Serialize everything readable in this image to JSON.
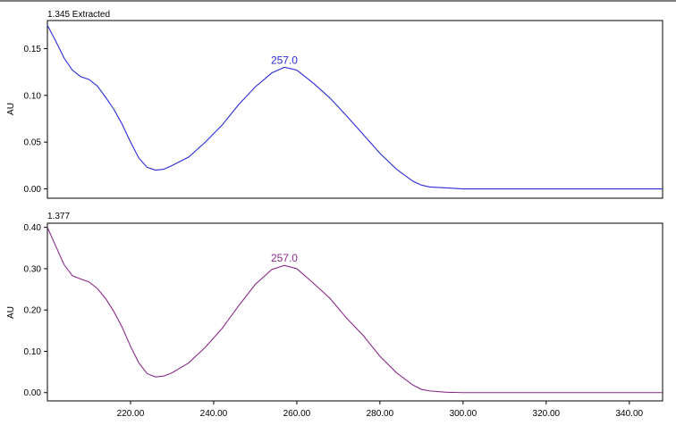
{
  "chart_data": [
    {
      "type": "line",
      "title": "1.345 Extracted",
      "xlabel": "",
      "ylabel": "AU",
      "xlim": [
        200,
        348
      ],
      "ylim": [
        -0.01,
        0.18
      ],
      "yticks": [
        0.0,
        0.05,
        0.1,
        0.15
      ],
      "ytick_labels": [
        "0.00",
        "0.05",
        "0.10",
        "0.15"
      ],
      "xticks": [],
      "xtick_labels": [],
      "grid": false,
      "series": [
        {
          "color": "#2b2bdc",
          "x": [
            200,
            202,
            204,
            206,
            208,
            210,
            212,
            214,
            216,
            218,
            220,
            222,
            224,
            226,
            228,
            230,
            234,
            238,
            242,
            246,
            250,
            254,
            257,
            260,
            264,
            268,
            272,
            276,
            280,
            284,
            288,
            290,
            292,
            296,
            300,
            310,
            320,
            330,
            340,
            348
          ],
          "values": [
            0.175,
            0.158,
            0.14,
            0.127,
            0.12,
            0.117,
            0.11,
            0.098,
            0.085,
            0.069,
            0.05,
            0.033,
            0.023,
            0.02,
            0.021,
            0.025,
            0.034,
            0.05,
            0.068,
            0.09,
            0.109,
            0.124,
            0.13,
            0.127,
            0.113,
            0.097,
            0.078,
            0.058,
            0.038,
            0.021,
            0.008,
            0.004,
            0.002,
            0.001,
            0.0,
            0.0,
            0.0,
            0.0,
            0.0,
            0.0
          ]
        }
      ],
      "annotations": [
        {
          "text": "257.0",
          "x": 257,
          "y": 0.13,
          "color": "#2b2bdc"
        }
      ]
    },
    {
      "type": "line",
      "title": "1.377",
      "xlabel": "",
      "ylabel": "AU",
      "xlim": [
        200,
        348
      ],
      "ylim": [
        -0.02,
        0.41
      ],
      "yticks": [
        0.0,
        0.1,
        0.2,
        0.3,
        0.4
      ],
      "ytick_labels": [
        "0.00",
        "0.10",
        "0.20",
        "0.30",
        "0.40"
      ],
      "xticks": [
        220,
        240,
        260,
        280,
        300,
        320,
        340
      ],
      "xtick_labels": [
        "220.00",
        "240.00",
        "260.00",
        "280.00",
        "300.00",
        "320.00",
        "340.00"
      ],
      "grid": false,
      "series": [
        {
          "color": "#8b2a8b",
          "x": [
            200,
            202,
            204,
            206,
            208,
            210,
            212,
            214,
            216,
            218,
            220,
            222,
            224,
            226,
            228,
            230,
            234,
            238,
            242,
            246,
            250,
            254,
            257,
            260,
            264,
            268,
            272,
            276,
            280,
            284,
            288,
            290,
            292,
            296,
            300,
            310,
            320,
            330,
            340,
            348
          ],
          "values": [
            0.4,
            0.355,
            0.31,
            0.283,
            0.275,
            0.268,
            0.252,
            0.228,
            0.196,
            0.158,
            0.112,
            0.072,
            0.046,
            0.038,
            0.04,
            0.048,
            0.072,
            0.11,
            0.155,
            0.21,
            0.262,
            0.298,
            0.308,
            0.3,
            0.265,
            0.228,
            0.18,
            0.138,
            0.088,
            0.048,
            0.018,
            0.008,
            0.004,
            0.001,
            0.0,
            0.0,
            0.0,
            0.0,
            0.0,
            0.0
          ]
        }
      ],
      "annotations": [
        {
          "text": "257.0",
          "x": 257,
          "y": 0.308,
          "color": "#8b2a8b"
        }
      ]
    }
  ]
}
